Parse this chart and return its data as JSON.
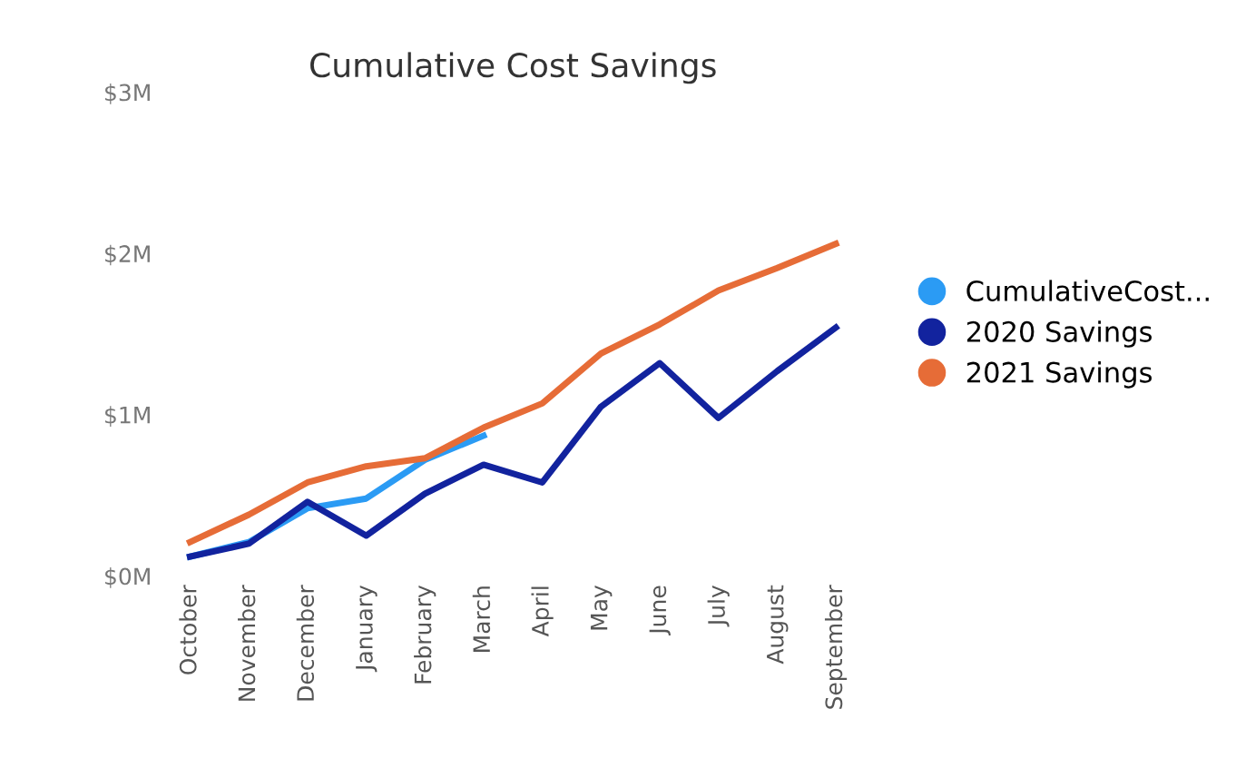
{
  "chart_data": {
    "type": "line",
    "title": "Cumulative Cost Savings",
    "categories": [
      "October",
      "November",
      "December",
      "January",
      "February",
      "March",
      "April",
      "May",
      "June",
      "July",
      "August",
      "September"
    ],
    "series": [
      {
        "name": "CumulativeCost...",
        "color": "#2b9bf4",
        "values": [
          0.12,
          0.21,
          0.42,
          0.48,
          0.72,
          0.87,
          null,
          null,
          null,
          null,
          null,
          null
        ]
      },
      {
        "name": "2020 Savings",
        "color": "#12239e",
        "values": [
          0.12,
          0.2,
          0.46,
          0.25,
          0.51,
          0.69,
          0.58,
          1.05,
          1.32,
          0.98,
          1.27,
          1.54
        ]
      },
      {
        "name": "2021 Savings",
        "color": "#e66c37",
        "values": [
          0.21,
          0.38,
          0.58,
          0.68,
          0.73,
          0.92,
          1.07,
          1.38,
          1.56,
          1.77,
          1.91,
          2.06
        ]
      }
    ],
    "ylim": [
      0,
      3
    ],
    "yticks": [
      {
        "value": 0,
        "label": "$0M"
      },
      {
        "value": 1,
        "label": "$1M"
      },
      {
        "value": 2,
        "label": "$2M"
      },
      {
        "value": 3,
        "label": "$3M"
      }
    ],
    "grid": false,
    "legend": "right",
    "marker": "none",
    "line_style": "solid"
  }
}
